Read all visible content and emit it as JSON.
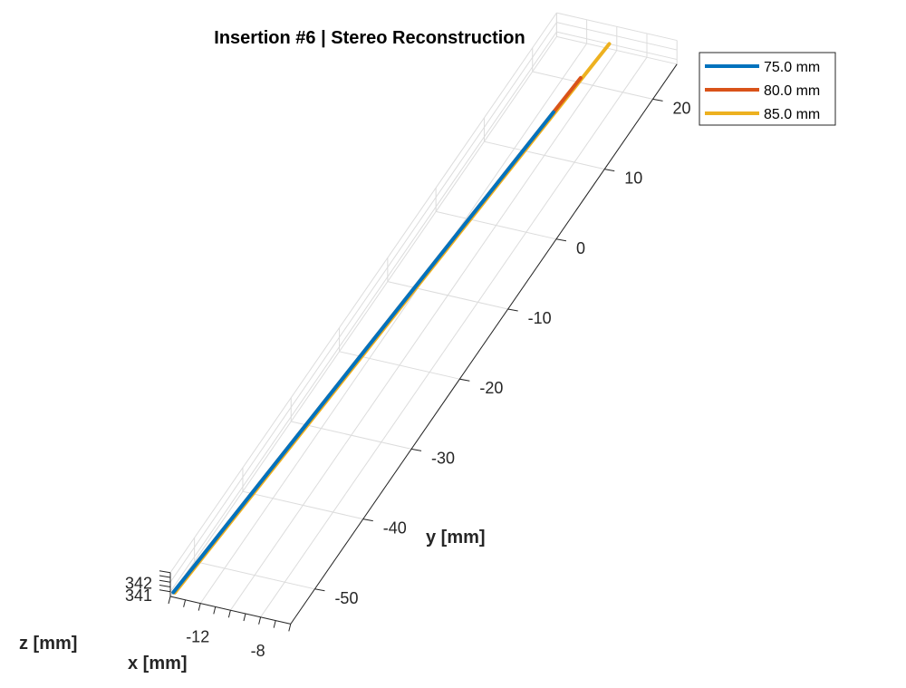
{
  "chart_data": {
    "type": "line",
    "projection": "3d",
    "title": "Insertion #6 | Stereo Reconstruction",
    "xlabel": "x [mm]",
    "ylabel": "y [mm]",
    "zlabel": "z [mm]",
    "x_ticks": [
      -12,
      -8
    ],
    "y_ticks": [
      20,
      10,
      0,
      -10,
      -20,
      -30,
      -40,
      -50
    ],
    "z_ticks": [
      342,
      341
    ],
    "xlim": [
      -14,
      -6
    ],
    "ylim": [
      -55,
      25
    ],
    "zlim": [
      340.5,
      343
    ],
    "grid": true,
    "legend_position": "top-right",
    "colors": {
      "75.0 mm": "#0072BD",
      "80.0 mm": "#D95319",
      "85.0 mm": "#EDB120",
      "grid": "#dcdcdc",
      "axis": "#262626"
    },
    "series": [
      {
        "name": "75.0 mm",
        "y": [
          -55,
          -50,
          -45,
          -40,
          -35,
          -30,
          -25,
          -20,
          -15,
          -10,
          -5,
          0,
          5,
          10,
          15
        ],
        "x": [
          -13.8,
          -13.6,
          -13.4,
          -13.2,
          -13.0,
          -12.8,
          -12.6,
          -12.4,
          -12.2,
          -12.0,
          -11.8,
          -11.6,
          -11.4,
          -11.2,
          -11.0
        ],
        "z": [
          341.0,
          341.0,
          341.0,
          341.0,
          341.0,
          341.0,
          341.0,
          341.0,
          341.0,
          341.0,
          341.0,
          341.0,
          341.0,
          341.0,
          341.0
        ]
      },
      {
        "name": "80.0 mm",
        "y": [
          -55,
          -50,
          -45,
          -40,
          -35,
          -30,
          -25,
          -20,
          -15,
          -10,
          -5,
          0,
          5,
          10,
          15,
          20
        ],
        "x": [
          -13.8,
          -13.6,
          -13.4,
          -13.2,
          -13.0,
          -12.8,
          -12.6,
          -12.4,
          -12.2,
          -12.0,
          -11.8,
          -11.6,
          -11.4,
          -11.2,
          -11.0,
          -10.8
        ],
        "z": [
          341.0,
          341.0,
          341.0,
          341.0,
          341.0,
          341.0,
          341.0,
          341.0,
          341.0,
          341.0,
          341.0,
          341.0,
          341.0,
          341.0,
          341.0,
          341.0
        ]
      },
      {
        "name": "85.0 mm",
        "y": [
          -55,
          -50,
          -45,
          -40,
          -35,
          -30,
          -25,
          -20,
          -15,
          -10,
          -5,
          0,
          5,
          10,
          15,
          20,
          25
        ],
        "x": [
          -13.7,
          -13.5,
          -13.3,
          -13.1,
          -12.9,
          -12.7,
          -12.5,
          -12.3,
          -12.1,
          -11.9,
          -11.7,
          -11.5,
          -11.3,
          -11.1,
          -10.9,
          -10.7,
          -10.5
        ],
        "z": [
          341.0,
          341.0,
          341.0,
          341.0,
          341.0,
          341.0,
          341.0,
          341.0,
          341.0,
          341.0,
          341.0,
          341.0,
          341.0,
          341.0,
          341.0,
          341.0,
          341.0
        ]
      }
    ]
  }
}
